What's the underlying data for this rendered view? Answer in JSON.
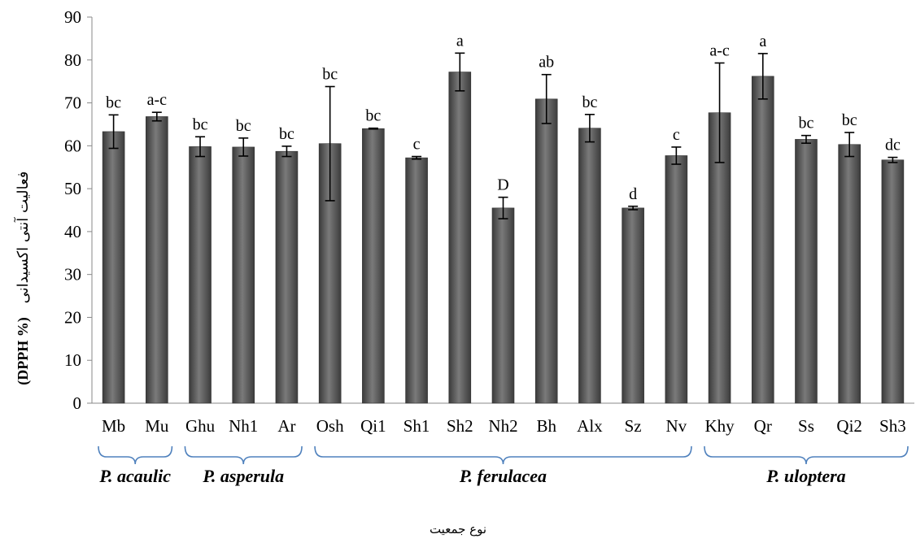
{
  "chart_data": {
    "type": "bar",
    "title": "",
    "ylabel_fa": "فعالیت آنتی اکسیدانی",
    "ylabel_unit": "(DPPH %)",
    "xlabel": "نوع جمعیت",
    "ylim": [
      0,
      90
    ],
    "yticks": [
      0,
      10,
      20,
      30,
      40,
      50,
      60,
      70,
      80,
      90
    ],
    "grid": false,
    "legend": "none",
    "bar_color": "#5a5a5a",
    "categories": [
      "Mb",
      "Mu",
      "Ghu",
      "Nh1",
      "Ar",
      "Osh",
      "Qi1",
      "Sh1",
      "Sh2",
      "Nh2",
      "Bh",
      "Alx",
      "Sz",
      "Nv",
      "Khy",
      "Qr",
      "Ss",
      "Qi2",
      "Sh3"
    ],
    "values": [
      63.3,
      66.8,
      59.8,
      59.7,
      58.7,
      60.5,
      64.0,
      57.2,
      77.2,
      45.5,
      70.9,
      64.1,
      45.5,
      57.7,
      67.7,
      76.2,
      61.5,
      60.3,
      56.7
    ],
    "errors": [
      3.9,
      1.0,
      2.3,
      2.1,
      1.2,
      13.3,
      0.1,
      0.3,
      4.4,
      2.5,
      5.7,
      3.2,
      0.4,
      2.0,
      11.6,
      5.3,
      0.9,
      2.8,
      0.6
    ],
    "labels": [
      "bc",
      "a-c",
      "bc",
      "bc",
      "bc",
      "bc",
      "bc",
      "c",
      "a",
      "D",
      "ab",
      "bc",
      "d",
      "c",
      "a-c",
      "a",
      "bc",
      "bc",
      "dc"
    ],
    "groups": [
      {
        "name": "P. acaulic",
        "start": 0,
        "end": 1
      },
      {
        "name": "P. asperula",
        "start": 2,
        "end": 4
      },
      {
        "name": "P. ferulacea",
        "start": 5,
        "end": 13
      },
      {
        "name": "P. uloptera",
        "start": 14,
        "end": 18
      }
    ]
  }
}
